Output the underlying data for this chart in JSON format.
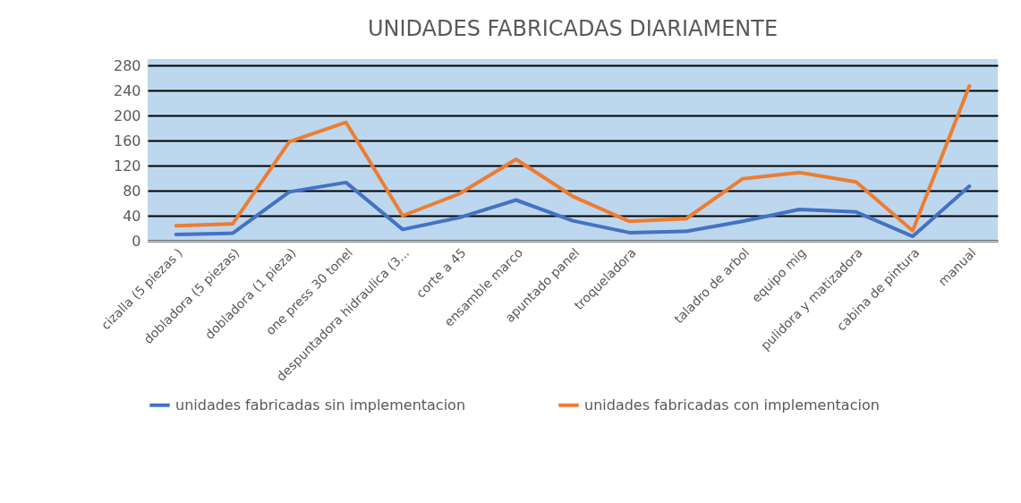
{
  "chart_data": {
    "type": "line",
    "title": "UNIDADES FABRICADAS DIARIAMENTE",
    "categories": [
      "cizalla (5 piezas )",
      "dobladora (5 piezas)",
      "dobladora (1 pieza)",
      "one press 30 tonel",
      "despuntadora hidraulica (3...",
      "corte a 45",
      "ensamble marco",
      "apuntado panel",
      "troqueladora",
      null,
      "taladro de arbol",
      "equipo mig",
      "pulidora y matizadora",
      "cabina de pintura",
      "manual"
    ],
    "series": [
      {
        "name": "unidades  fabricadas sin implementacion",
        "color": "#4472c4",
        "values": [
          10,
          12,
          78,
          93,
          18,
          37,
          65,
          32,
          13,
          15,
          31,
          50,
          46,
          7,
          87
        ]
      },
      {
        "name": "unidades fabricadas con implementacion",
        "color": "#ed7d31",
        "values": [
          24,
          27,
          158,
          189,
          40,
          75,
          130,
          71,
          31,
          35,
          99,
          109,
          94,
          16,
          247
        ]
      }
    ],
    "ylim": [
      0,
      290
    ],
    "yticks": [
      0,
      40,
      80,
      120,
      160,
      200,
      240,
      280
    ],
    "grid": "y",
    "legend": "bottom",
    "marker": "none",
    "line_style": "solid"
  }
}
